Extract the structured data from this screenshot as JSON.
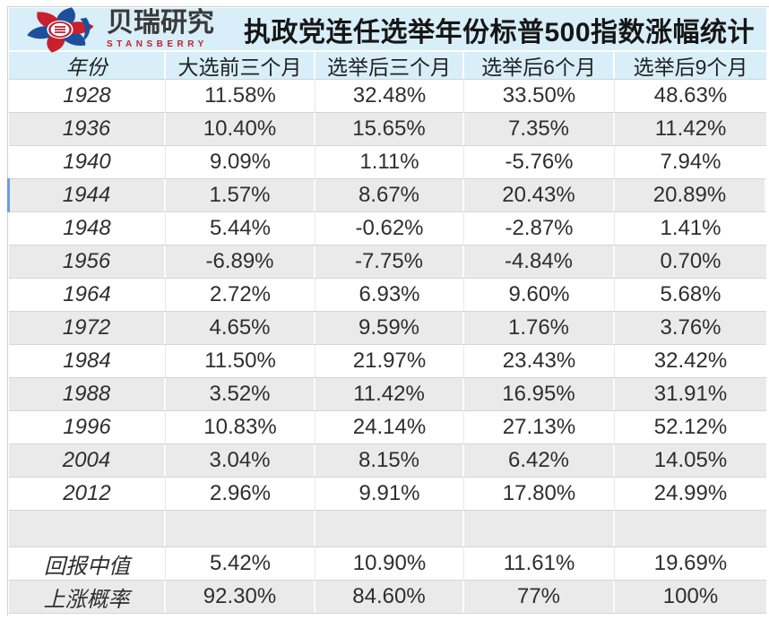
{
  "logo": {
    "name_cn": "贝瑞研究",
    "name_en": "STANSBERRY"
  },
  "title": "执政党连任选举年份标普500指数涨幅统计",
  "table": {
    "columns": [
      "年份",
      "大选前三个月",
      "选举后三个月",
      "选举后6个月",
      "选举后9个月"
    ],
    "rows": [
      {
        "year": "1928",
        "values": [
          "11.58%",
          "32.48%",
          "33.50%",
          "48.63%"
        ]
      },
      {
        "year": "1936",
        "values": [
          "10.40%",
          "15.65%",
          "7.35%",
          "11.42%"
        ]
      },
      {
        "year": "1940",
        "values": [
          "9.09%",
          "1.11%",
          "-5.76%",
          "7.94%"
        ]
      },
      {
        "year": "1944",
        "values": [
          "1.57%",
          "8.67%",
          "20.43%",
          "20.89%"
        ]
      },
      {
        "year": "1948",
        "values": [
          "5.44%",
          "-0.62%",
          "-2.87%",
          "1.41%"
        ]
      },
      {
        "year": "1956",
        "values": [
          "-6.89%",
          "-7.75%",
          "-4.84%",
          "0.70%"
        ]
      },
      {
        "year": "1964",
        "values": [
          "2.72%",
          "6.93%",
          "9.60%",
          "5.68%"
        ]
      },
      {
        "year": "1972",
        "values": [
          "4.65%",
          "9.59%",
          "1.76%",
          "3.76%"
        ]
      },
      {
        "year": "1984",
        "values": [
          "11.50%",
          "21.97%",
          "23.43%",
          "32.42%"
        ]
      },
      {
        "year": "1988",
        "values": [
          "3.52%",
          "11.42%",
          "16.95%",
          "31.91%"
        ]
      },
      {
        "year": "1996",
        "values": [
          "10.83%",
          "24.14%",
          "27.13%",
          "52.12%"
        ]
      },
      {
        "year": "2004",
        "values": [
          "3.04%",
          "8.15%",
          "6.42%",
          "14.05%"
        ]
      },
      {
        "year": "2012",
        "values": [
          "2.96%",
          "9.91%",
          "17.80%",
          "24.99%"
        ]
      }
    ],
    "selected_year": "1944",
    "summary_rows": [
      {
        "label": "回报中值",
        "values": [
          "5.42%",
          "10.90%",
          "11.61%",
          "19.69%"
        ]
      },
      {
        "label": "上涨概率",
        "values": [
          "92.30%",
          "84.60%",
          "77%",
          "100%"
        ]
      }
    ]
  },
  "colors": {
    "header-bg": "#d8eef8",
    "selection": "#6a9ced",
    "brand-red": "#c8202f",
    "brand-blue": "#1d4f9c",
    "row-alt": "#eaeaeb"
  }
}
